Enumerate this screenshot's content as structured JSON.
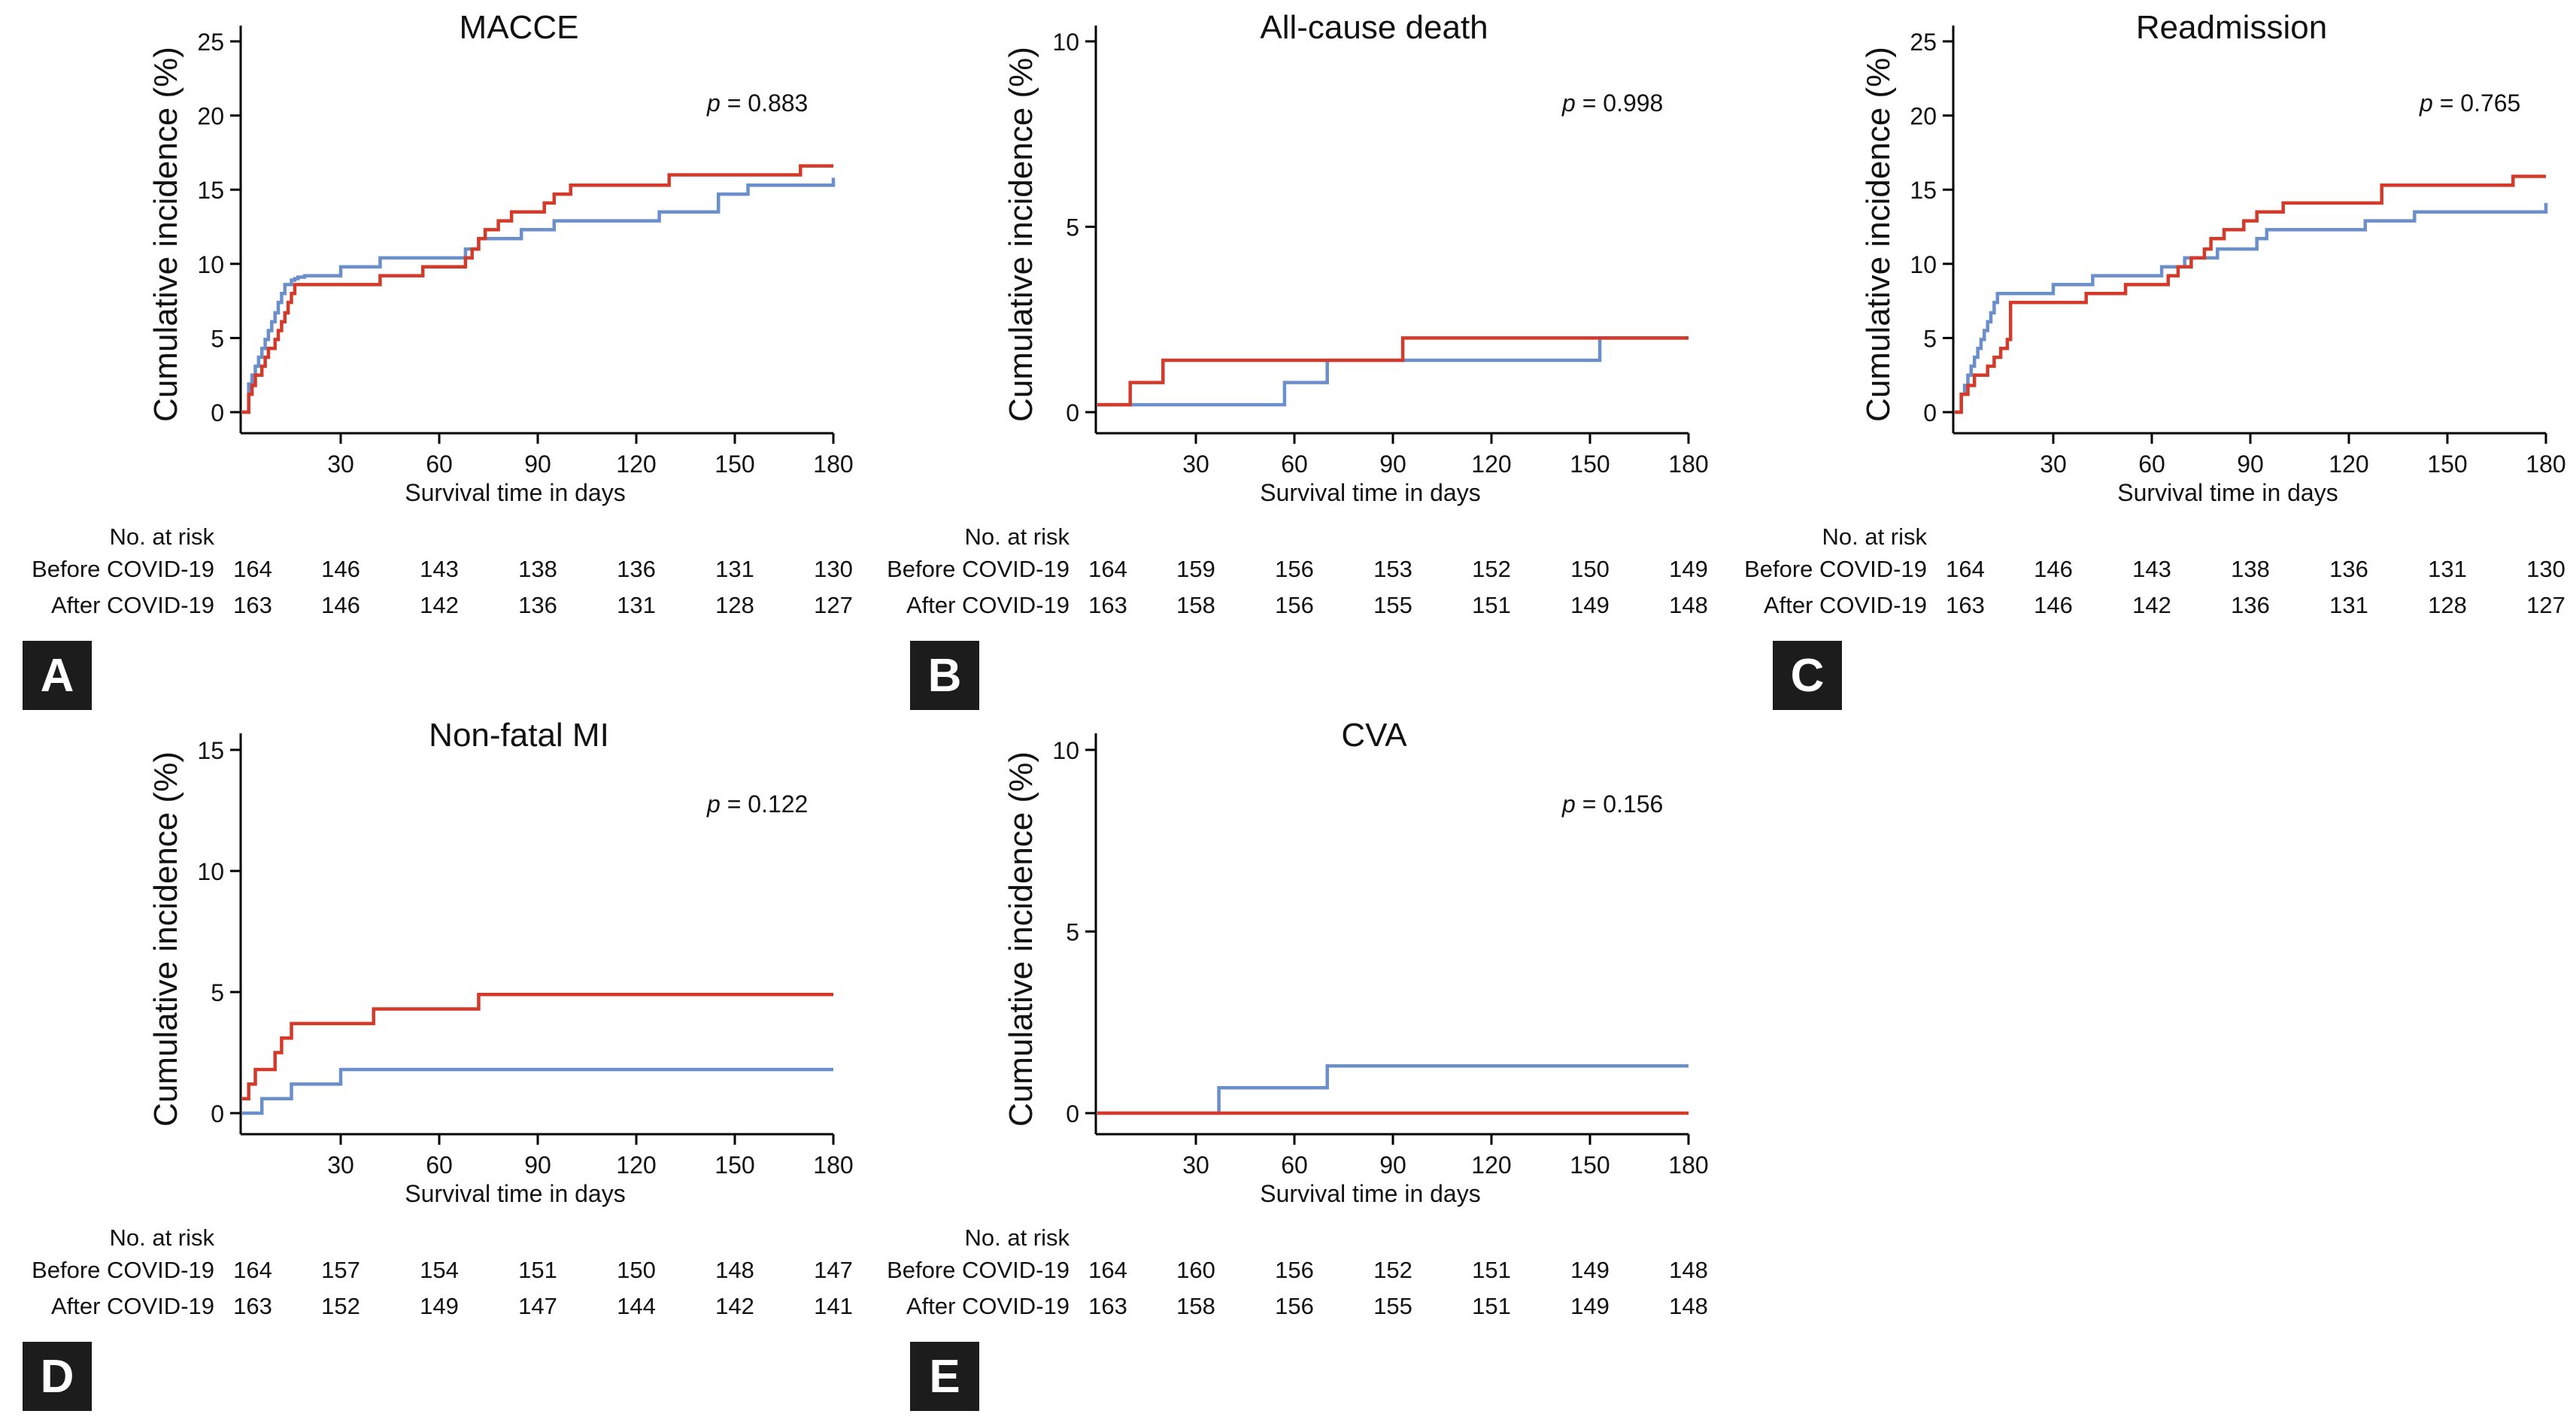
{
  "chart_data": [
    {
      "type": "line",
      "panel": "A",
      "title": "MACCE",
      "xlabel": "Survival time in days",
      "ylabel": "Cumulative incidence (%)",
      "xlim": [
        0,
        180
      ],
      "ylim": [
        0,
        25
      ],
      "xticks": [
        30,
        60,
        90,
        120,
        150,
        180
      ],
      "yticks": [
        0,
        5,
        10,
        15,
        20,
        25
      ],
      "p_value": "= 0.883",
      "p_label": "p",
      "colors": {
        "before": "#6a8fcb",
        "after": "#d43a2a"
      },
      "series": [
        {
          "name": "Before COVID-19",
          "color": "#6a8fcb",
          "x": [
            0,
            2,
            3,
            4,
            5,
            6,
            7,
            8,
            9,
            10,
            11,
            12,
            13,
            14,
            15,
            16,
            17,
            18,
            19,
            30,
            42,
            55,
            68,
            72,
            85,
            95,
            127,
            145,
            154,
            180
          ],
          "y": [
            0,
            1.9,
            2.5,
            3.1,
            3.7,
            4.3,
            4.9,
            5.5,
            6.1,
            6.7,
            7.4,
            8.0,
            8.6,
            8.6,
            8.9,
            9.0,
            9.1,
            9.1,
            9.2,
            9.8,
            10.4,
            10.4,
            11.0,
            11.7,
            12.3,
            12.9,
            13.5,
            14.7,
            15.3,
            15.8
          ]
        },
        {
          "name": "After COVID-19",
          "color": "#d43a2a",
          "x": [
            0,
            2,
            3,
            4,
            6,
            7,
            8,
            10,
            11,
            12,
            13,
            14,
            15,
            16,
            17,
            18,
            19,
            30,
            42,
            55,
            68,
            70,
            72,
            74,
            78,
            82,
            88,
            92,
            95,
            100,
            120,
            130,
            170,
            180
          ],
          "y": [
            0,
            1.2,
            1.8,
            2.5,
            3.1,
            3.7,
            4.3,
            4.9,
            5.5,
            6.1,
            6.7,
            7.4,
            8.0,
            8.6,
            8.6,
            8.6,
            8.6,
            8.6,
            9.2,
            9.8,
            10.4,
            11.0,
            11.7,
            12.3,
            12.9,
            13.5,
            13.5,
            14.1,
            14.7,
            15.3,
            15.3,
            16.0,
            16.6,
            16.6
          ]
        }
      ],
      "risk_table": {
        "header": "No. at risk",
        "rows": [
          {
            "label": "Before COVID-19",
            "values": [
              "164",
              "146",
              "143",
              "138",
              "136",
              "131",
              "130"
            ]
          },
          {
            "label": "After COVID-19",
            "values": [
              "163",
              "146",
              "142",
              "136",
              "131",
              "128",
              "127"
            ]
          }
        ]
      }
    },
    {
      "type": "line",
      "panel": "B",
      "title": "All-cause death",
      "xlabel": "Survival time in days",
      "ylabel": "Cumulative incidence (%)",
      "xlim": [
        0,
        180
      ],
      "ylim": [
        0,
        10
      ],
      "xticks": [
        30,
        60,
        90,
        120,
        150,
        180
      ],
      "yticks": [
        0,
        5,
        10
      ],
      "p_value": "= 0.998",
      "p_label": "p",
      "series": [
        {
          "name": "Before COVID-19",
          "color": "#6a8fcb",
          "x": [
            0,
            57,
            70,
            153,
            180
          ],
          "y": [
            0.2,
            0.8,
            1.4,
            2.0,
            2.0
          ]
        },
        {
          "name": "After COVID-19",
          "color": "#d43a2a",
          "x": [
            0,
            10,
            20,
            70,
            93,
            180
          ],
          "y": [
            0.2,
            0.8,
            1.4,
            1.4,
            2.0,
            2.0
          ]
        }
      ],
      "risk_table": {
        "header": "No. at risk",
        "rows": [
          {
            "label": "Before COVID-19",
            "values": [
              "164",
              "159",
              "156",
              "153",
              "152",
              "150",
              "149"
            ]
          },
          {
            "label": "After COVID-19",
            "values": [
              "163",
              "158",
              "156",
              "155",
              "151",
              "149",
              "148"
            ]
          }
        ]
      }
    },
    {
      "type": "line",
      "panel": "C",
      "title": "Readmission",
      "xlabel": "Survival time in days",
      "ylabel": "Cumulative incidence (%)",
      "xlim": [
        0,
        180
      ],
      "ylim": [
        0,
        25
      ],
      "xticks": [
        30,
        60,
        90,
        120,
        150,
        180
      ],
      "yticks": [
        0,
        5,
        10,
        15,
        20,
        25
      ],
      "p_value": "= 0.765",
      "p_label": "p",
      "series": [
        {
          "name": "Before COVID-19",
          "color": "#6a8fcb",
          "x": [
            0,
            2,
            3,
            4,
            5,
            6,
            7,
            8,
            9,
            10,
            11,
            12,
            13,
            30,
            42,
            63,
            70,
            80,
            92,
            95,
            125,
            140,
            180
          ],
          "y": [
            0,
            1.2,
            1.8,
            2.5,
            3.1,
            3.7,
            4.3,
            4.9,
            5.5,
            6.1,
            6.7,
            7.4,
            8.0,
            8.6,
            9.2,
            9.8,
            10.4,
            11.0,
            11.7,
            12.3,
            12.9,
            13.5,
            14.1
          ]
        },
        {
          "name": "After COVID-19",
          "color": "#d43a2a",
          "x": [
            0,
            2,
            4,
            6,
            10,
            12,
            14,
            16,
            17,
            40,
            52,
            65,
            68,
            72,
            76,
            78,
            82,
            88,
            92,
            100,
            120,
            130,
            170,
            180
          ],
          "y": [
            0,
            1.2,
            1.8,
            2.5,
            3.1,
            3.7,
            4.3,
            4.9,
            7.4,
            8.0,
            8.6,
            9.2,
            9.8,
            10.4,
            11.0,
            11.7,
            12.3,
            12.9,
            13.5,
            14.1,
            14.1,
            15.3,
            15.9,
            15.9
          ]
        }
      ],
      "risk_table": {
        "header": "No. at risk",
        "rows": [
          {
            "label": "Before COVID-19",
            "values": [
              "164",
              "146",
              "143",
              "138",
              "136",
              "131",
              "130"
            ]
          },
          {
            "label": "After COVID-19",
            "values": [
              "163",
              "146",
              "142",
              "136",
              "131",
              "128",
              "127"
            ]
          }
        ]
      }
    },
    {
      "type": "line",
      "panel": "D",
      "title": "Non-fatal MI",
      "xlabel": "Survival time in days",
      "ylabel": "Cumulative incidence (%)",
      "xlim": [
        0,
        180
      ],
      "ylim": [
        0,
        15
      ],
      "xticks": [
        30,
        60,
        90,
        120,
        150,
        180
      ],
      "yticks": [
        0,
        5,
        10,
        15
      ],
      "p_value": "= 0.122",
      "p_label": "p",
      "series": [
        {
          "name": "Before COVID-19",
          "color": "#6a8fcb",
          "x": [
            0,
            6,
            15,
            30,
            180
          ],
          "y": [
            0,
            0.6,
            1.2,
            1.8,
            1.8
          ]
        },
        {
          "name": "After COVID-19",
          "color": "#d43a2a",
          "x": [
            0,
            2,
            4,
            6,
            10,
            12,
            15,
            40,
            72,
            180
          ],
          "y": [
            0.6,
            1.2,
            1.8,
            1.8,
            2.5,
            3.1,
            3.7,
            4.3,
            4.9,
            4.9
          ]
        }
      ],
      "risk_table": {
        "header": "No. at risk",
        "rows": [
          {
            "label": "Before COVID-19",
            "values": [
              "164",
              "157",
              "154",
              "151",
              "150",
              "148",
              "147"
            ]
          },
          {
            "label": "After COVID-19",
            "values": [
              "163",
              "152",
              "149",
              "147",
              "144",
              "142",
              "141"
            ]
          }
        ]
      }
    },
    {
      "type": "line",
      "panel": "E",
      "title": "CVA",
      "xlabel": "Survival time in days",
      "ylabel": "Cumulative incidence (%)",
      "xlim": [
        0,
        180
      ],
      "ylim": [
        0,
        10
      ],
      "xticks": [
        30,
        60,
        90,
        120,
        150,
        180
      ],
      "yticks": [
        0,
        5,
        10
      ],
      "p_value": "= 0.156",
      "p_label": "p",
      "series": [
        {
          "name": "Before COVID-19",
          "color": "#6a8fcb",
          "x": [
            0,
            37,
            70,
            180
          ],
          "y": [
            0,
            0.7,
            1.3,
            1.3
          ]
        },
        {
          "name": "After COVID-19",
          "color": "#d43a2a",
          "x": [
            0,
            180
          ],
          "y": [
            0,
            0
          ]
        }
      ],
      "risk_table": {
        "header": "No. at risk",
        "rows": [
          {
            "label": "Before COVID-19",
            "values": [
              "164",
              "160",
              "156",
              "152",
              "151",
              "149",
              "148"
            ]
          },
          {
            "label": "After COVID-19",
            "values": [
              "163",
              "158",
              "156",
              "155",
              "151",
              "149",
              "148"
            ]
          }
        ]
      }
    }
  ]
}
